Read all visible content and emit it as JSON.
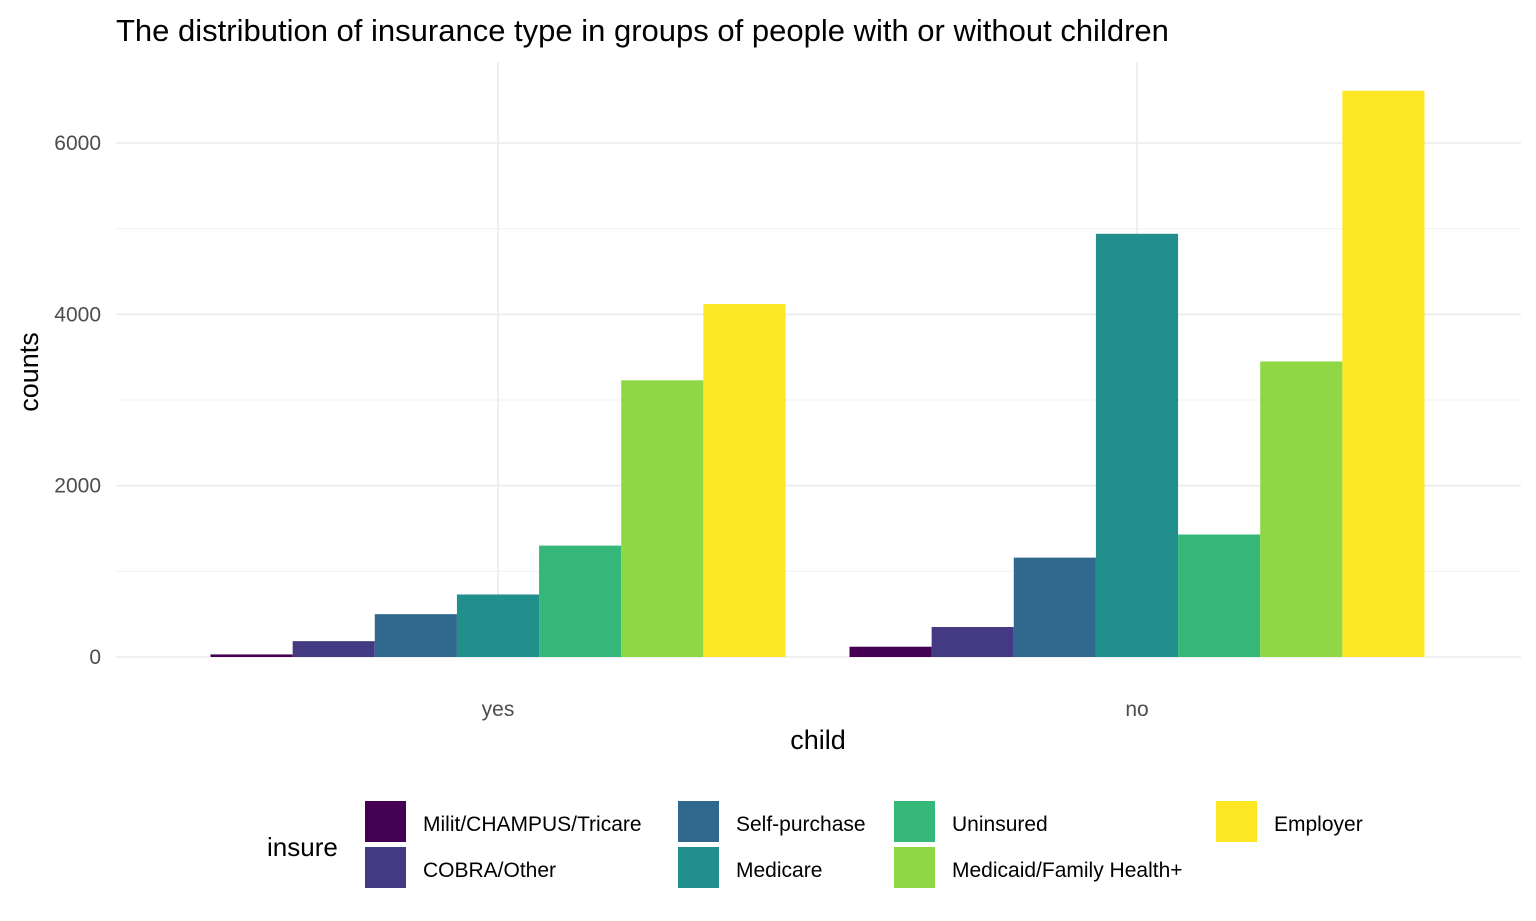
{
  "chart_data": {
    "type": "bar",
    "title": "The distribution of insurance type in groups of people with or without children",
    "xlabel": "child",
    "ylabel": "counts",
    "categories": [
      "yes",
      "no"
    ],
    "ylim": [
      0,
      6900
    ],
    "yticks": [
      0,
      2000,
      4000,
      6000
    ],
    "yticks_text": [
      "0",
      "2000",
      "4000",
      "6000"
    ],
    "grid": true,
    "legend": {
      "title": "insure",
      "position": "bottom"
    },
    "series": [
      {
        "name": "Milit/CHAMPUS/Tricare",
        "color": "#440154",
        "values": [
          30,
          120
        ]
      },
      {
        "name": "COBRA/Other",
        "color": "#443A83",
        "values": [
          185,
          350
        ]
      },
      {
        "name": "Self-purchase",
        "color": "#31688E",
        "values": [
          500,
          1160
        ]
      },
      {
        "name": "Medicare",
        "color": "#21908C",
        "values": [
          730,
          4940
        ]
      },
      {
        "name": "Uninsured",
        "color": "#35B779",
        "values": [
          1300,
          1430
        ]
      },
      {
        "name": "Medicaid/Family Health+",
        "color": "#8FD744",
        "values": [
          3230,
          3450
        ]
      },
      {
        "name": "Employer",
        "color": "#FDE725",
        "values": [
          4120,
          6610
        ]
      }
    ]
  }
}
